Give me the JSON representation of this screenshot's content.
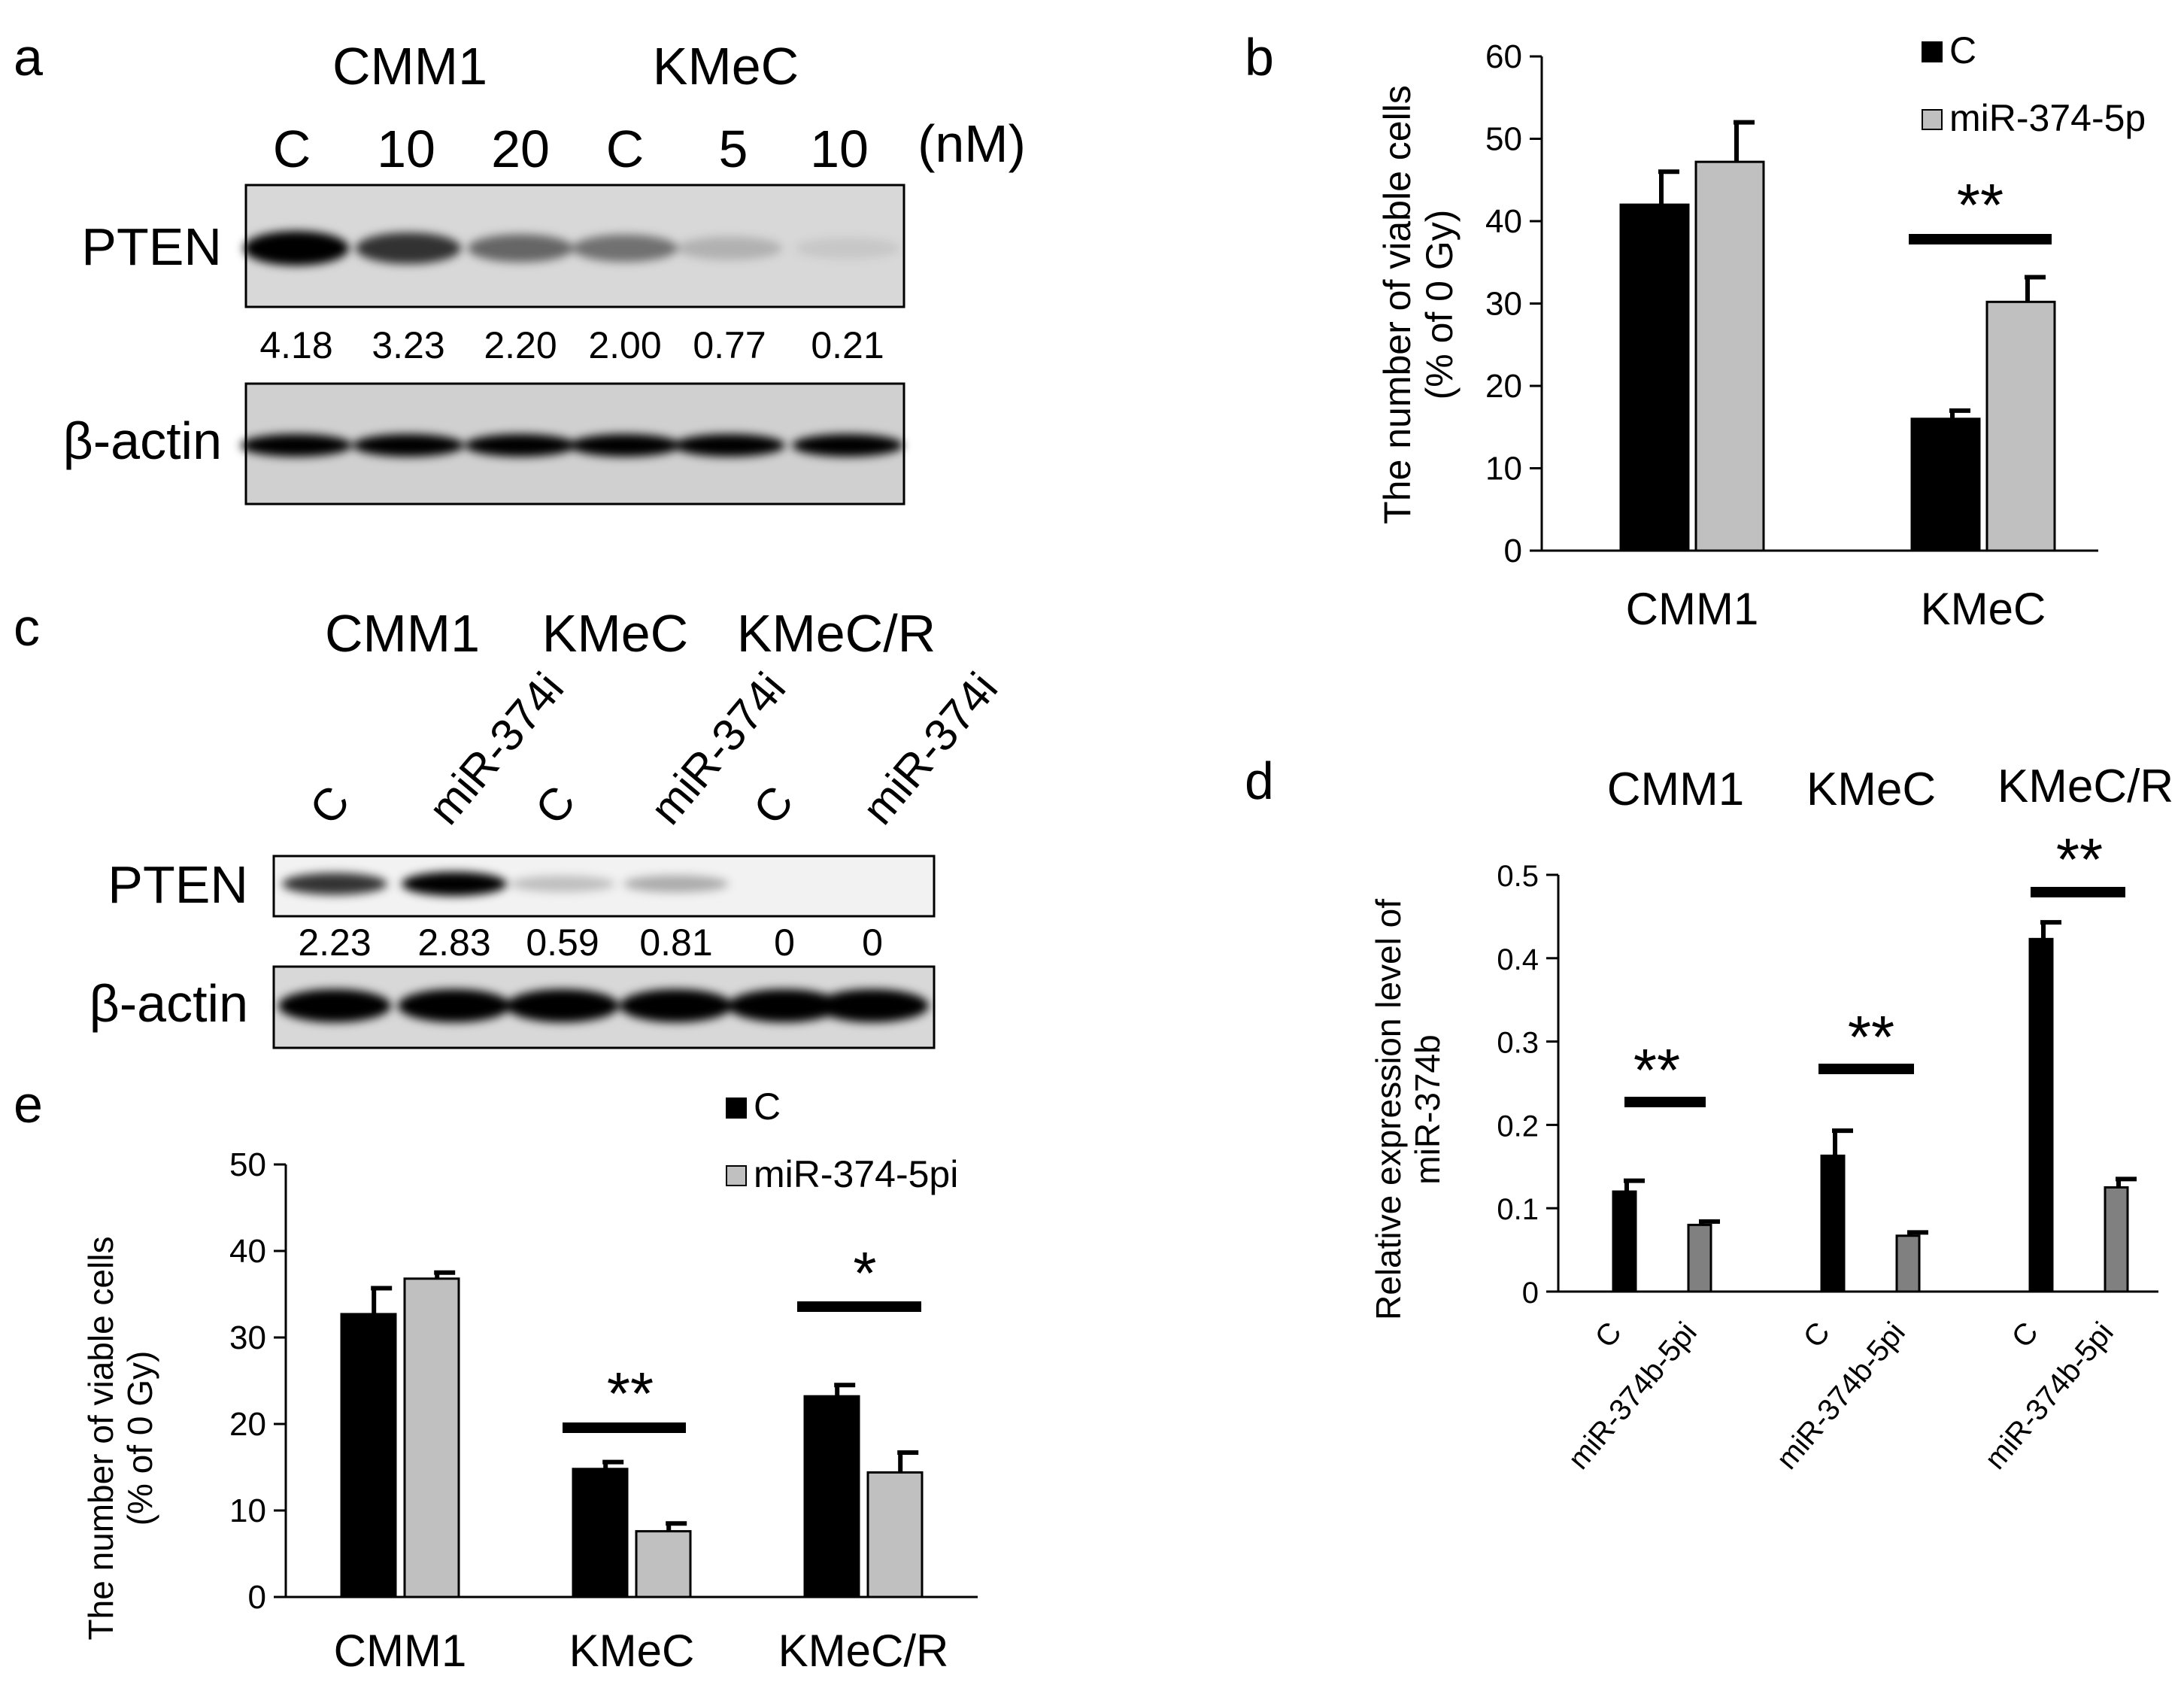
{
  "panel_labels": {
    "a": "a",
    "b": "b",
    "c": "c",
    "d": "d",
    "e": "e"
  },
  "colors": {
    "black": "#000000",
    "light_gray": "#c0c0c0",
    "mid_gray": "#808080"
  },
  "panel_a": {
    "groups": [
      "CMM1",
      "KMeC"
    ],
    "lanes": [
      "C",
      "10",
      "20",
      "C",
      "5",
      "10"
    ],
    "unit": "(nM)",
    "bands": [
      "PTEN",
      "β-actin"
    ],
    "quant": [
      "4.18",
      "3.23",
      "2.20",
      "2.00",
      "0.77",
      "0.21"
    ],
    "pten_intensity": [
      4.18,
      3.23,
      2.2,
      2.0,
      0.77,
      0.21
    ]
  },
  "panel_c": {
    "groups": [
      "CMM1",
      "KMeC",
      "KMeC/R"
    ],
    "lanes": [
      "C",
      "miR-374i",
      "C",
      "miR-374i",
      "C",
      "miR-374i"
    ],
    "bands": [
      "PTEN",
      "β-actin"
    ],
    "quant": [
      "2.23",
      "2.83",
      "0.59",
      "0.81",
      "0",
      "0"
    ],
    "pten_intensity": [
      2.23,
      2.83,
      0.59,
      0.81,
      0,
      0
    ]
  },
  "chart_data": [
    {
      "id": "b",
      "type": "bar",
      "title": "",
      "categories": [
        "CMM1",
        "KMeC"
      ],
      "series": [
        {
          "name": "C",
          "color": "#000000",
          "values": [
            42,
            16
          ],
          "errors": [
            4,
            1
          ]
        },
        {
          "name": "miR-374-5p",
          "color": "#c0c0c0",
          "values": [
            47.2,
            30.2
          ],
          "errors": [
            4.8,
            3
          ]
        }
      ],
      "ylabel": [
        "The number of viable cells",
        "(% of 0 Gy)"
      ],
      "ylim": [
        0,
        60
      ],
      "yticks": [
        "0",
        "10",
        "20",
        "30",
        "40",
        "50",
        "60"
      ],
      "legend_position": "top-right",
      "significance": [
        {
          "category": 1,
          "label": "**"
        }
      ]
    },
    {
      "id": "d",
      "type": "bar",
      "title": "",
      "groups": [
        "CMM1",
        "KMeC",
        "KMeC/R"
      ],
      "categories": [
        "C",
        "miR-374b-5pi",
        "C",
        "miR-374b-5pi",
        "C",
        "miR-374b-5pi"
      ],
      "values": [
        0.12,
        0.08,
        0.163,
        0.067,
        0.423,
        0.125
      ],
      "errors": [
        0.013,
        0.004,
        0.03,
        0.004,
        0.02,
        0.01
      ],
      "bar_colors": [
        "#000000",
        "#808080",
        "#000000",
        "#808080",
        "#000000",
        "#808080"
      ],
      "ylabel": [
        "Relative expression level of",
        "miR-374b"
      ],
      "ylim": [
        0,
        0.5
      ],
      "yticks": [
        "0",
        "0.1",
        "0.2",
        "0.3",
        "0.4",
        "0.5"
      ],
      "significance": [
        {
          "group": 0,
          "label": "**"
        },
        {
          "group": 1,
          "label": "**"
        },
        {
          "group": 2,
          "label": "**"
        }
      ]
    },
    {
      "id": "e",
      "type": "bar",
      "title": "",
      "categories": [
        "CMM1",
        "KMeC",
        "KMeC/R"
      ],
      "series": [
        {
          "name": "C",
          "color": "#000000",
          "values": [
            32.7,
            14.8,
            23.2
          ],
          "errors": [
            3,
            0.8,
            1.3
          ]
        },
        {
          "name": "miR-374-5pi",
          "color": "#c0c0c0",
          "values": [
            36.8,
            7.6,
            14.4
          ],
          "errors": [
            0.7,
            0.9,
            2.3
          ]
        }
      ],
      "ylabel": [
        "The number of viable cells",
        "(% of 0 Gy)"
      ],
      "ylim": [
        0,
        50
      ],
      "yticks": [
        "0",
        "10",
        "20",
        "30",
        "40",
        "50"
      ],
      "legend_position": "top-right",
      "significance": [
        {
          "category": 1,
          "label": "**"
        },
        {
          "category": 2,
          "label": "*"
        }
      ]
    }
  ]
}
